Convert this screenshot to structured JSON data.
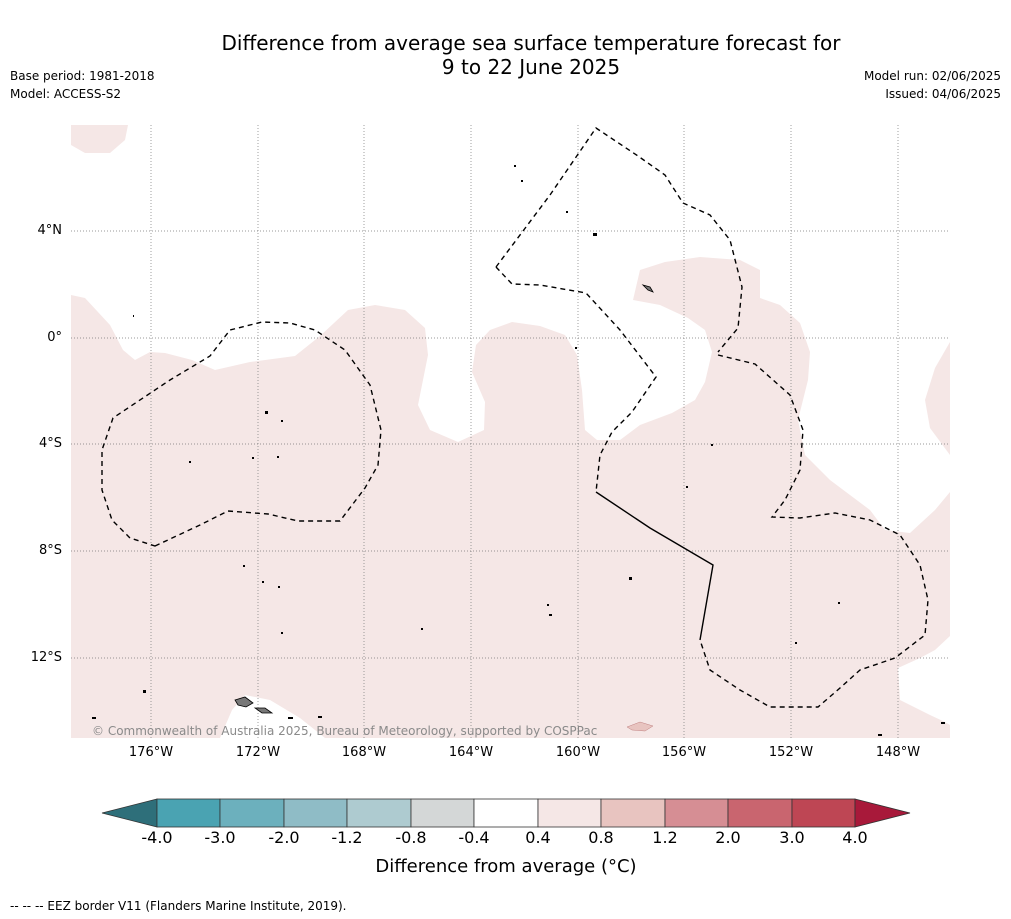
{
  "header": {
    "title_line1": "Difference from average sea surface temperature forecast for",
    "title_line2": "9 to 22 June 2025",
    "base_period": "Base period: 1981-2018",
    "model": "Model: ACCESS-S2",
    "model_run": "Model run: 02/06/2025",
    "issued": "Issued: 04/06/2025"
  },
  "map": {
    "latitude_labels": [
      "4°N",
      "0°",
      "4°S",
      "8°S",
      "12°S"
    ],
    "longitude_labels": [
      "176°W",
      "172°W",
      "168°W",
      "164°W",
      "160°W",
      "156°W",
      "152°W",
      "148°W"
    ],
    "copyright": "© Commonwealth of Australia 2025, Bureau of Meteorology, supported by COSPPac"
  },
  "colorbar": {
    "ticks": [
      "-4.0",
      "-3.0",
      "-2.0",
      "-1.2",
      "-0.8",
      "-0.4",
      "0.4",
      "0.8",
      "1.2",
      "2.0",
      "3.0",
      "4.0"
    ],
    "colors": [
      "#2e6f7a",
      "#4aa3b2",
      "#6cb0bd",
      "#8fbcc6",
      "#aecbd0",
      "#d4d7d7",
      "#ffffff",
      "#f5e7e6",
      "#e8c4c0",
      "#d68e94",
      "#c9656f",
      "#be4654",
      "#a8193a"
    ],
    "label": "Difference from average (°C)"
  },
  "footer": {
    "legend_text": "--  --  -- EEZ border V11 (Flanders Marine Institute, 2019)."
  }
}
